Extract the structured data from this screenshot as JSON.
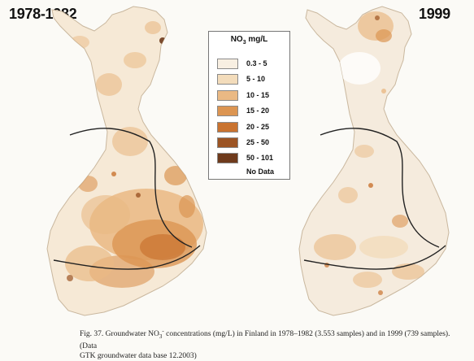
{
  "maps": {
    "left": {
      "title": "1978-1982"
    },
    "right": {
      "title": "1999"
    }
  },
  "legend": {
    "title": "NO",
    "title_sub": "3",
    "title_unit": " mg/L",
    "items": [
      {
        "label": "0.3 - 5",
        "color": "#f8efe2"
      },
      {
        "label": "5 - 10",
        "color": "#f3dcbb"
      },
      {
        "label": "10 - 15",
        "color": "#eab984"
      },
      {
        "label": "15 - 20",
        "color": "#dc9552"
      },
      {
        "label": "20 - 25",
        "color": "#c97330"
      },
      {
        "label": "25 - 50",
        "color": "#9c5424"
      },
      {
        "label": "50 - 101",
        "color": "#6e3a1c"
      },
      {
        "label": "No Data",
        "color": "#ffffff"
      }
    ]
  },
  "caption": {
    "line1_pre": "Fig. 37. Groundwater NO",
    "line1_sub": "3",
    "line1_sup": "-",
    "line1_post": " concentrations  (mg/L) in Finland  in 1978–1982 (3.553 samples) and in 1999 (739 samples). (Data",
    "line2": "GTK groundwater data base 12.2003)"
  }
}
